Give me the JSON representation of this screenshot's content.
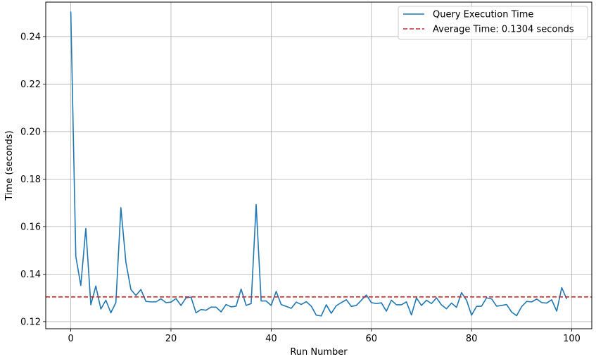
{
  "chart_data": {
    "type": "line",
    "title": "",
    "xlabel": "Run Number",
    "ylabel": "Time (seconds)",
    "xlim": [
      -5,
      104
    ],
    "ylim": [
      0.117,
      0.2545
    ],
    "xticks": [
      0,
      20,
      40,
      60,
      80,
      100
    ],
    "yticks": [
      0.12,
      0.14,
      0.16,
      0.18,
      0.2,
      0.22,
      0.24
    ],
    "ytick_labels": [
      "0.12",
      "0.14",
      "0.16",
      "0.18",
      "0.20",
      "0.22",
      "0.24"
    ],
    "grid": true,
    "legend_position": "top-right",
    "series": [
      {
        "name": "Query Execution Time",
        "color": "#1f77b4",
        "style": "solid",
        "x": [
          0,
          1,
          2,
          3,
          4,
          5,
          6,
          7,
          8,
          9,
          10,
          11,
          12,
          13,
          14,
          15,
          16,
          17,
          18,
          19,
          20,
          21,
          22,
          23,
          24,
          25,
          26,
          27,
          28,
          29,
          30,
          31,
          32,
          33,
          34,
          35,
          36,
          37,
          38,
          39,
          40,
          41,
          42,
          43,
          44,
          45,
          46,
          47,
          48,
          49,
          50,
          51,
          52,
          53,
          54,
          55,
          56,
          57,
          58,
          59,
          60,
          61,
          62,
          63,
          64,
          65,
          66,
          67,
          68,
          69,
          70,
          71,
          72,
          73,
          74,
          75,
          76,
          77,
          78,
          79,
          80,
          81,
          82,
          83,
          84,
          85,
          86,
          87,
          88,
          89,
          90,
          91,
          92,
          93,
          94,
          95,
          96,
          97,
          98,
          99
        ],
        "values": [
          0.2505,
          0.1475,
          0.1352,
          0.1592,
          0.1271,
          0.135,
          0.1253,
          0.129,
          0.1237,
          0.128,
          0.168,
          0.145,
          0.1335,
          0.131,
          0.1335,
          0.1285,
          0.1283,
          0.1283,
          0.1296,
          0.128,
          0.1282,
          0.1297,
          0.1268,
          0.13,
          0.1303,
          0.1237,
          0.1251,
          0.1248,
          0.1261,
          0.1261,
          0.1241,
          0.1272,
          0.1262,
          0.1265,
          0.1337,
          0.1268,
          0.1276,
          0.1693,
          0.1287,
          0.1287,
          0.1268,
          0.1327,
          0.1272,
          0.1264,
          0.1256,
          0.1282,
          0.1272,
          0.1284,
          0.1265,
          0.1227,
          0.1224,
          0.1271,
          0.1235,
          0.1267,
          0.128,
          0.1292,
          0.1264,
          0.1268,
          0.129,
          0.1312,
          0.128,
          0.1276,
          0.1279,
          0.1244,
          0.129,
          0.1271,
          0.1271,
          0.1283,
          0.1228,
          0.13,
          0.1268,
          0.129,
          0.1276,
          0.13,
          0.127,
          0.1254,
          0.1278,
          0.126,
          0.1322,
          0.129,
          0.1227,
          0.1264,
          0.1265,
          0.13,
          0.1296,
          0.1265,
          0.1268,
          0.1272,
          0.124,
          0.1225,
          0.1263,
          0.1285,
          0.1283,
          0.1295,
          0.128,
          0.1278,
          0.1292,
          0.1244,
          0.1343,
          0.1295
        ]
      },
      {
        "name": "Average Time: 0.1304 seconds",
        "color": "#d62728",
        "style": "dashed",
        "value": 0.1304
      }
    ]
  }
}
